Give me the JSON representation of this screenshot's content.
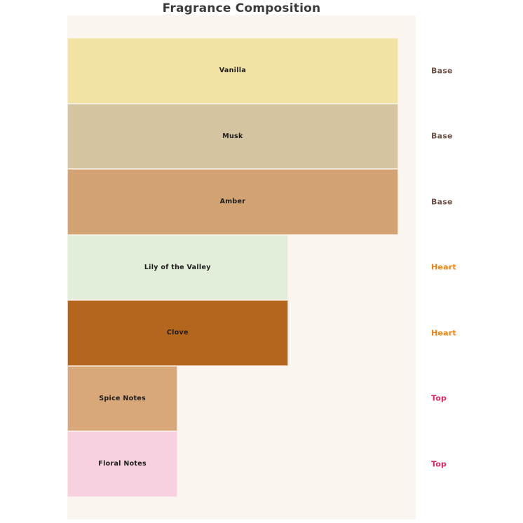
{
  "title": "Fragrance Composition",
  "colors": {
    "figure_background": "#ffffff",
    "plot_background": "#faf5ee",
    "title_text": "#3a3a3a",
    "bar_label_text": "#1c1c1c"
  },
  "group_colors": {
    "Base": "#6e5147",
    "Heart": "#f5820d",
    "Top": "#e0245e"
  },
  "chart_data": {
    "type": "bar",
    "orientation": "horizontal",
    "title": "Fragrance Composition",
    "xlabel": "",
    "ylabel": "",
    "xlim": [
      0,
      3.16
    ],
    "grid": false,
    "legend": false,
    "axes_visible": false,
    "categories": [
      "Vanilla",
      "Musk",
      "Amber",
      "Lily of the Valley",
      "Clove",
      "Spice Notes",
      "Floral Notes"
    ],
    "values": [
      3,
      3,
      3,
      2,
      2,
      1,
      1
    ],
    "groups": [
      "Base",
      "Base",
      "Base",
      "Heart",
      "Heart",
      "Top",
      "Top"
    ],
    "bar_colors": [
      "#f2e3a3",
      "#d4c5a0",
      "#d3a272",
      "#e2eeda",
      "#b5661d",
      "#d8a878",
      "#f7d1df"
    ]
  }
}
